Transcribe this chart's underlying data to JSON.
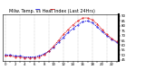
{
  "title": "Milw. Temp. vs Heat Index (Last 24Hrs)",
  "temp": [
    50,
    50,
    49,
    49,
    48,
    48,
    48,
    49,
    51,
    54,
    58,
    63,
    68,
    73,
    77,
    81,
    84,
    85,
    83,
    79,
    74,
    70,
    66,
    63
  ],
  "heat_index": [
    49,
    49,
    48,
    48,
    47,
    47,
    47,
    48,
    50,
    54,
    59,
    65,
    71,
    76,
    81,
    85,
    88,
    88,
    86,
    82,
    76,
    71,
    67,
    64
  ],
  "ylim": [
    44,
    92
  ],
  "ytick_vals": [
    45,
    50,
    55,
    60,
    65,
    70,
    75,
    80,
    85,
    90
  ],
  "ytick_labels": [
    "45",
    "50",
    "55",
    "60",
    "65",
    "70",
    "75",
    "80",
    "85",
    "90"
  ],
  "temp_color": "#0000dd",
  "heat_color": "#dd0000",
  "background": "#ffffff",
  "grid_color": "#999999",
  "num_points": 24,
  "title_fontsize": 3.5,
  "tick_fontsize": 2.8,
  "line_width": 0.6
}
